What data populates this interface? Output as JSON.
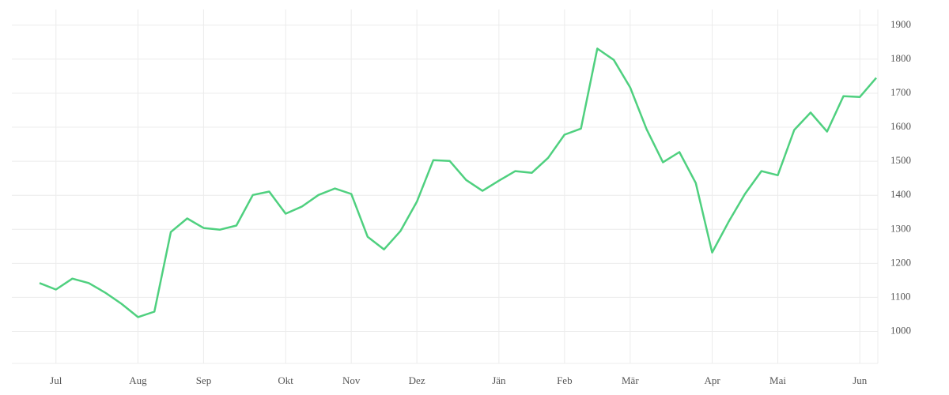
{
  "chart_data": {
    "type": "line",
    "categories": [
      null,
      "Jul",
      null,
      null,
      null,
      null,
      "Aug",
      null,
      null,
      null,
      "Sep",
      null,
      null,
      null,
      null,
      "Okt",
      null,
      null,
      null,
      "Nov",
      null,
      null,
      null,
      "Dez",
      null,
      null,
      null,
      null,
      "Jän",
      null,
      null,
      null,
      "Feb",
      null,
      null,
      null,
      "Mär",
      null,
      null,
      null,
      null,
      "Apr",
      null,
      null,
      null,
      "Mai",
      null,
      null,
      null,
      null,
      "Jun",
      null
    ],
    "series": [
      {
        "color": "#4fd07f",
        "values": [
          1142,
          1123,
          1155,
          1142,
          1114,
          1081,
          1042,
          1058,
          1292,
          1332,
          1304,
          1299,
          1311,
          1401,
          1411,
          1346,
          1367,
          1401,
          1420,
          1404,
          1278,
          1241,
          1295,
          1381,
          1503,
          1501,
          1445,
          1413,
          1443,
          1471,
          1466,
          1510,
          1578,
          1596,
          1831,
          1798,
          1717,
          1594,
          1497,
          1527,
          1436,
          1232,
          1322,
          1404,
          1471,
          1459,
          1592,
          1643,
          1587,
          1691,
          1689,
          1745
        ]
      }
    ],
    "ylim": [
      906,
      1946
    ],
    "yticks": [
      1000,
      1100,
      1200,
      1300,
      1400,
      1500,
      1600,
      1700,
      1800,
      1900
    ],
    "grid": true
  }
}
